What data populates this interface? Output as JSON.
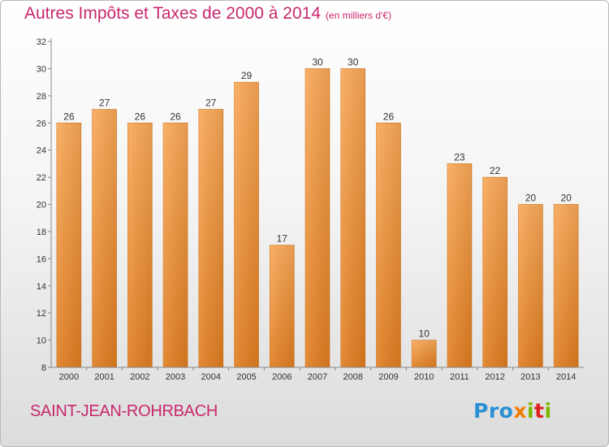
{
  "header": {
    "title": "Autres Impôts et Taxes de 2000 à 2014",
    "unit": "(en milliers d'€)"
  },
  "footer": {
    "city": "SAINT-JEAN-ROHRBACH",
    "logo": "Proxiti"
  },
  "colors": {
    "title": "#c8286e",
    "bar_light": "#f9a857",
    "bar_dark": "#e07d20"
  },
  "chart_data": {
    "type": "bar",
    "title": "Autres Impôts et Taxes de 2000 à 2014",
    "subtitle": "(en milliers d'€)",
    "xlabel": "",
    "ylabel": "",
    "categories": [
      "2000",
      "2001",
      "2002",
      "2003",
      "2004",
      "2005",
      "2006",
      "2007",
      "2008",
      "2009",
      "2010",
      "2011",
      "2012",
      "2013",
      "2014"
    ],
    "values": [
      26,
      27,
      26,
      26,
      27,
      29,
      17,
      30,
      30,
      26,
      10,
      23,
      22,
      20,
      20
    ],
    "ylim": [
      8,
      32
    ],
    "yticks": [
      8,
      10,
      12,
      14,
      16,
      18,
      20,
      22,
      24,
      26,
      28,
      30,
      32
    ],
    "grid": false
  }
}
